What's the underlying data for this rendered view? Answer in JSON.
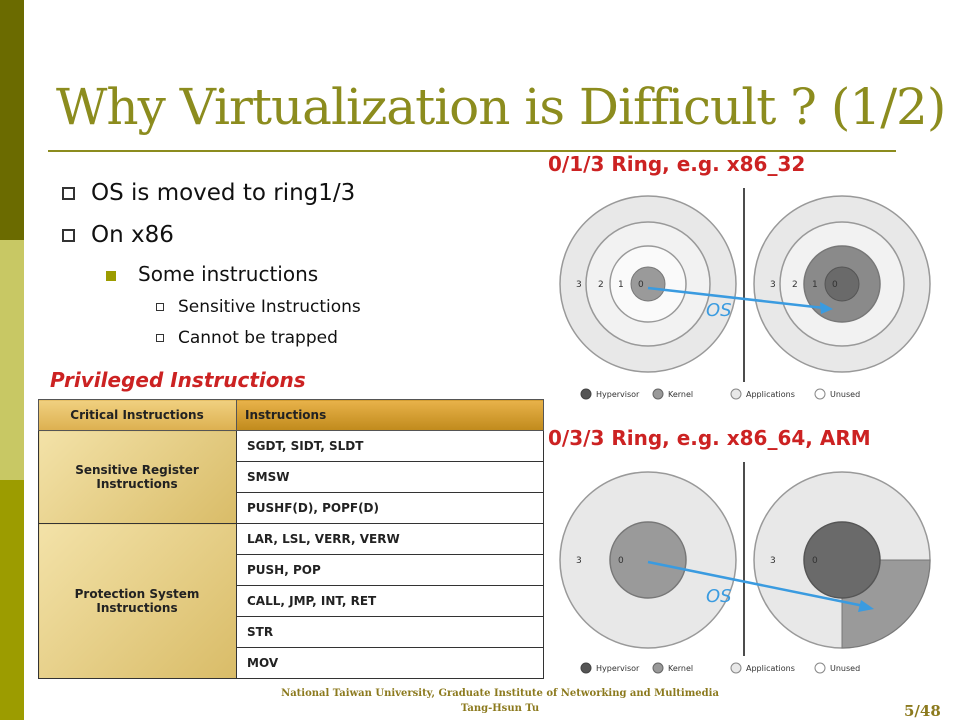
{
  "title": "Why Virtualization is Difficult ? (1/2)",
  "bullets": {
    "b1": "OS is moved to ring1/3",
    "b2": "On x86",
    "b3": "Some instructions",
    "b4": "Sensitive Instructions",
    "b5": "Cannot be trapped"
  },
  "privileged_heading": "Privileged Instructions",
  "table": {
    "headers": [
      "Critical Instructions",
      "Instructions"
    ],
    "group1": "Sensitive Register Instructions",
    "group1_rows": [
      "SGDT, SIDT, SLDT",
      "SMSW",
      "PUSHF(D), POPF(D)"
    ],
    "group2": "Protection System Instructions",
    "group2_rows": [
      "LAR, LSL, VERR, VERW",
      "PUSH, POP",
      "CALL, JMP, INT, RET",
      "STR",
      "MOV"
    ]
  },
  "ring_top": "0/1/3 Ring, e.g. x86_32",
  "ring_bottom": "0/3/3 Ring, e.g. x86_64, ARM",
  "os_label": "OS",
  "ring_numbers_top": [
    "3",
    "2",
    "1",
    "0"
  ],
  "ring_numbers_bottom": [
    "3",
    "0"
  ],
  "legend": [
    "Hypervisor",
    "Kernel",
    "Applications",
    "Unused"
  ],
  "footer_line1": "National Taiwan University, Graduate Institute of Networking and Multimedia",
  "footer_line2": "Tang-Hsun Tu",
  "page_number": "5/48",
  "colors": {
    "title": "#8c8c1e",
    "red": "#cc2222",
    "arrow": "#3a9be0"
  }
}
